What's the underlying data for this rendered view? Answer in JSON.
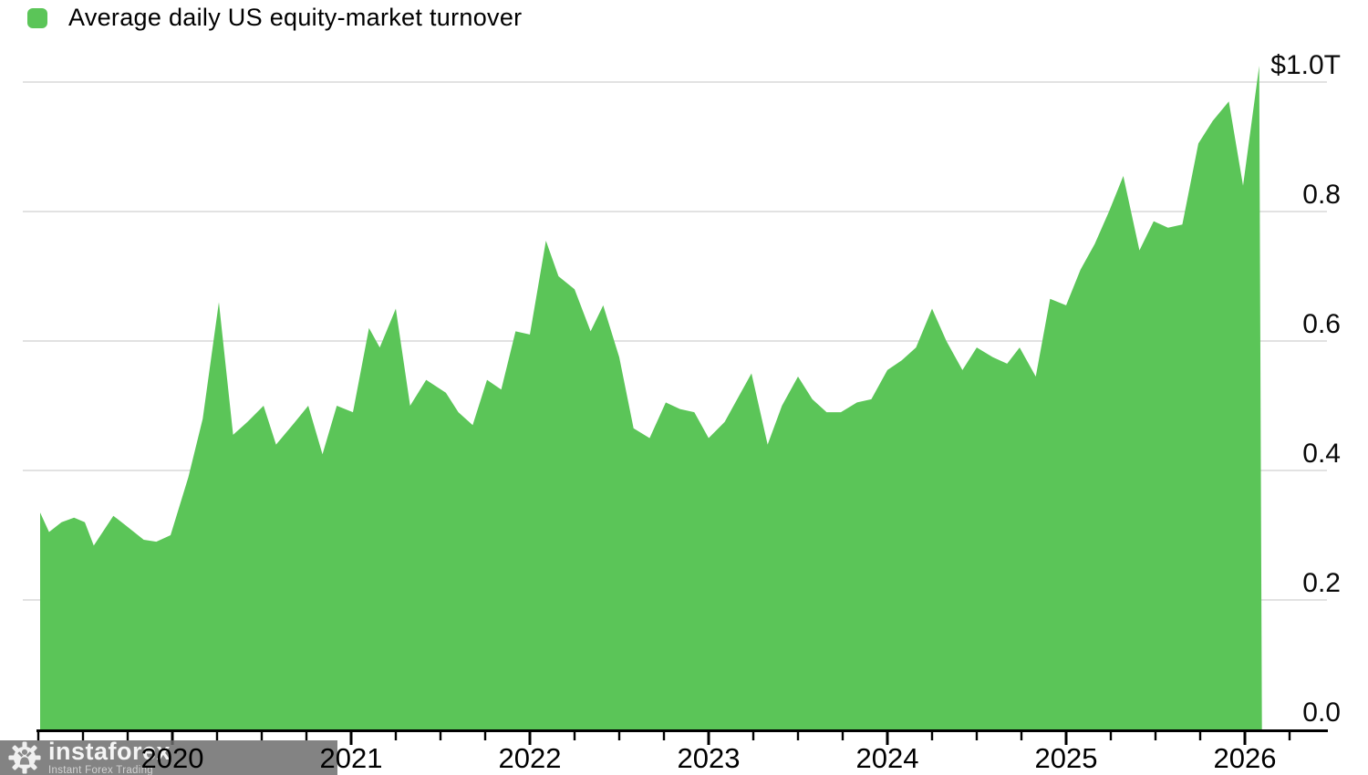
{
  "legend": {
    "label": "Average daily US equity-market turnover"
  },
  "watermark": {
    "brand": "instaforex",
    "tagline": "Instant Forex Trading"
  },
  "colors": {
    "area_green": "#5bc558",
    "gridline": "#d8d8d8",
    "axis": "#000000",
    "label_text": "#0a0a0a",
    "watermark_bg": "rgba(109,109,109,0.85)",
    "watermark_text": "#f5f5f5",
    "watermark_tagline": "#d2d2d2",
    "watermark_figure": "#8a8a8a"
  },
  "chart_data": {
    "type": "area",
    "title": "Average daily US equity-market turnover",
    "xlabel": "",
    "ylabel": "",
    "units": "trillions of US dollars per day",
    "legend_position": "top-left",
    "grid": "horizontal",
    "xlim": [
      2019.2,
      2026.45
    ],
    "ylim": [
      0,
      1.05
    ],
    "x_tick_years": [
      "2020",
      "2021",
      "2022",
      "2023",
      "2024",
      "2025",
      "2026"
    ],
    "minor_x_ticks": "quarterly",
    "y_ticks": [
      {
        "value": 0.0,
        "label": "0.0"
      },
      {
        "value": 0.2,
        "label": "0.2"
      },
      {
        "value": 0.4,
        "label": "0.4"
      },
      {
        "value": 0.6,
        "label": "0.6"
      },
      {
        "value": 0.8,
        "label": "0.8"
      },
      {
        "value": 1.0,
        "label": "$1.0T"
      }
    ],
    "series": [
      {
        "name": "Average daily US equity-market turnover",
        "points": [
          [
            2019.26,
            0.335
          ],
          [
            2019.31,
            0.305
          ],
          [
            2019.38,
            0.32
          ],
          [
            2019.45,
            0.327
          ],
          [
            2019.51,
            0.32
          ],
          [
            2019.56,
            0.284
          ],
          [
            2019.67,
            0.33
          ],
          [
            2019.74,
            0.315
          ],
          [
            2019.84,
            0.293
          ],
          [
            2019.91,
            0.29
          ],
          [
            2019.99,
            0.3
          ],
          [
            2020.09,
            0.39
          ],
          [
            2020.17,
            0.48
          ],
          [
            2020.26,
            0.66
          ],
          [
            2020.34,
            0.455
          ],
          [
            2020.42,
            0.475
          ],
          [
            2020.51,
            0.5
          ],
          [
            2020.58,
            0.44
          ],
          [
            2020.68,
            0.473
          ],
          [
            2020.76,
            0.5
          ],
          [
            2020.84,
            0.425
          ],
          [
            2020.92,
            0.5
          ],
          [
            2021.01,
            0.49
          ],
          [
            2021.1,
            0.62
          ],
          [
            2021.16,
            0.59
          ],
          [
            2021.25,
            0.65
          ],
          [
            2021.33,
            0.5
          ],
          [
            2021.42,
            0.54
          ],
          [
            2021.53,
            0.52
          ],
          [
            2021.6,
            0.49
          ],
          [
            2021.68,
            0.47
          ],
          [
            2021.76,
            0.54
          ],
          [
            2021.84,
            0.525
          ],
          [
            2021.92,
            0.615
          ],
          [
            2022.0,
            0.61
          ],
          [
            2022.09,
            0.755
          ],
          [
            2022.16,
            0.7
          ],
          [
            2022.25,
            0.68
          ],
          [
            2022.34,
            0.615
          ],
          [
            2022.41,
            0.655
          ],
          [
            2022.5,
            0.575
          ],
          [
            2022.58,
            0.465
          ],
          [
            2022.67,
            0.45
          ],
          [
            2022.76,
            0.505
          ],
          [
            2022.84,
            0.495
          ],
          [
            2022.92,
            0.49
          ],
          [
            2023.0,
            0.45
          ],
          [
            2023.09,
            0.475
          ],
          [
            2023.17,
            0.515
          ],
          [
            2023.24,
            0.55
          ],
          [
            2023.33,
            0.44
          ],
          [
            2023.41,
            0.5
          ],
          [
            2023.5,
            0.545
          ],
          [
            2023.58,
            0.51
          ],
          [
            2023.66,
            0.49
          ],
          [
            2023.74,
            0.49
          ],
          [
            2023.83,
            0.505
          ],
          [
            2023.91,
            0.51
          ],
          [
            2024.0,
            0.555
          ],
          [
            2024.08,
            0.57
          ],
          [
            2024.16,
            0.59
          ],
          [
            2024.25,
            0.65
          ],
          [
            2024.33,
            0.6
          ],
          [
            2024.42,
            0.555
          ],
          [
            2024.5,
            0.59
          ],
          [
            2024.59,
            0.575
          ],
          [
            2024.67,
            0.565
          ],
          [
            2024.74,
            0.59
          ],
          [
            2024.83,
            0.545
          ],
          [
            2024.91,
            0.665
          ],
          [
            2025.0,
            0.655
          ],
          [
            2025.08,
            0.71
          ],
          [
            2025.16,
            0.75
          ],
          [
            2025.24,
            0.8
          ],
          [
            2025.32,
            0.855
          ],
          [
            2025.41,
            0.74
          ],
          [
            2025.49,
            0.785
          ],
          [
            2025.57,
            0.775
          ],
          [
            2025.65,
            0.78
          ],
          [
            2025.74,
            0.905
          ],
          [
            2025.82,
            0.94
          ],
          [
            2025.91,
            0.97
          ],
          [
            2025.99,
            0.84
          ],
          [
            2026.08,
            1.025
          ]
        ]
      }
    ]
  }
}
